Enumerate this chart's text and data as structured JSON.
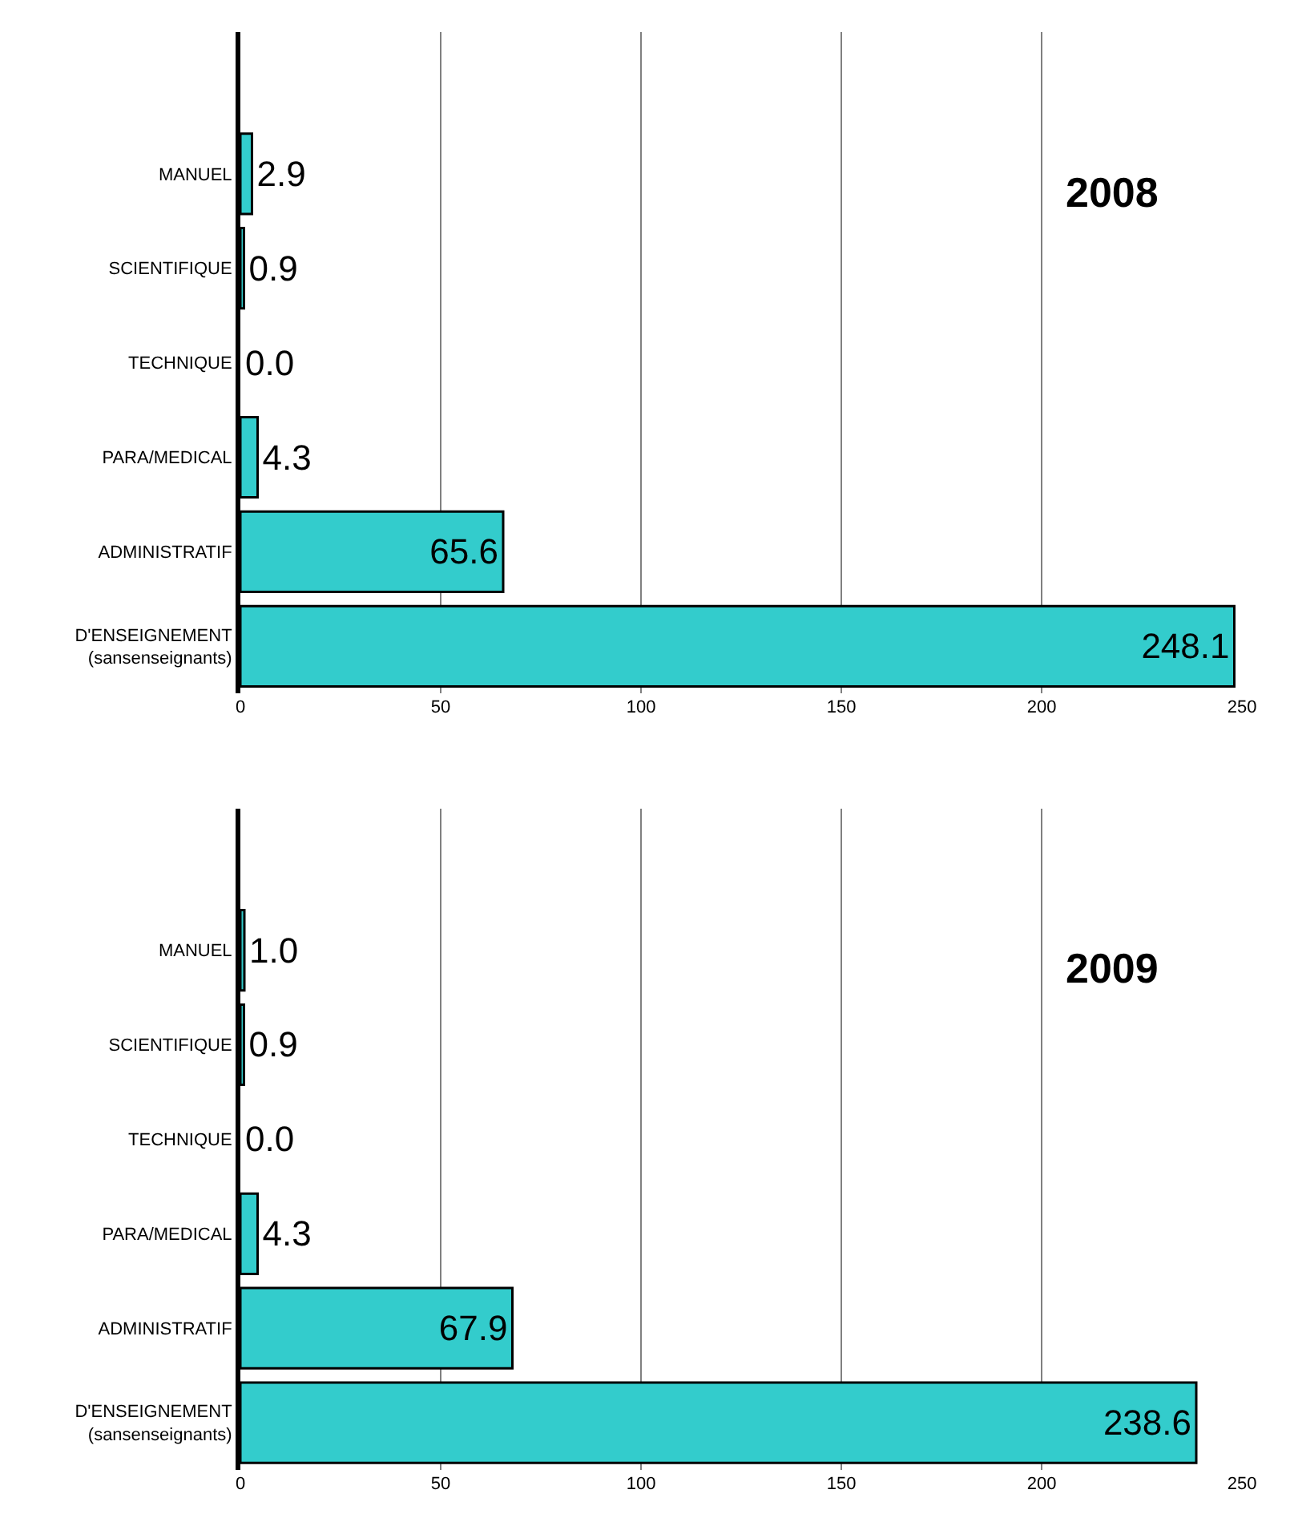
{
  "chart_data": [
    {
      "type": "bar",
      "orientation": "horizontal",
      "title": "2008",
      "categories": [
        null,
        "MANUEL",
        "SCIENTIFIQUE",
        "TECHNIQUE",
        "PARA/MEDICAL",
        "ADMINISTRATIF",
        "D'ENSEIGNEMENT\n(sansenseignants)"
      ],
      "values": [
        null,
        2.9,
        0.9,
        0.0,
        4.3,
        65.6,
        248.1
      ],
      "value_labels": [
        null,
        "2.9",
        "0.9",
        "0.0",
        "4.3",
        "65.6",
        "248.1"
      ],
      "color": "#33cccc",
      "xlim": [
        0,
        250
      ],
      "xticks": [
        0,
        50,
        100,
        150,
        200,
        250
      ],
      "grid": "x"
    },
    {
      "type": "bar",
      "orientation": "horizontal",
      "title": "2009",
      "categories": [
        null,
        "MANUEL",
        "SCIENTIFIQUE",
        "TECHNIQUE",
        "PARA/MEDICAL",
        "ADMINISTRATIF",
        "D'ENSEIGNEMENT\n(sansenseignants)"
      ],
      "values": [
        null,
        1.0,
        0.9,
        0.0,
        4.3,
        67.9,
        238.6
      ],
      "value_labels": [
        null,
        "1.0",
        "0.9",
        "0.0",
        "4.3",
        "67.9",
        "238.6"
      ],
      "color": "#33cccc",
      "xlim": [
        0,
        250
      ],
      "xticks": [
        0,
        50,
        100,
        150,
        200,
        250
      ],
      "grid": "x"
    }
  ]
}
